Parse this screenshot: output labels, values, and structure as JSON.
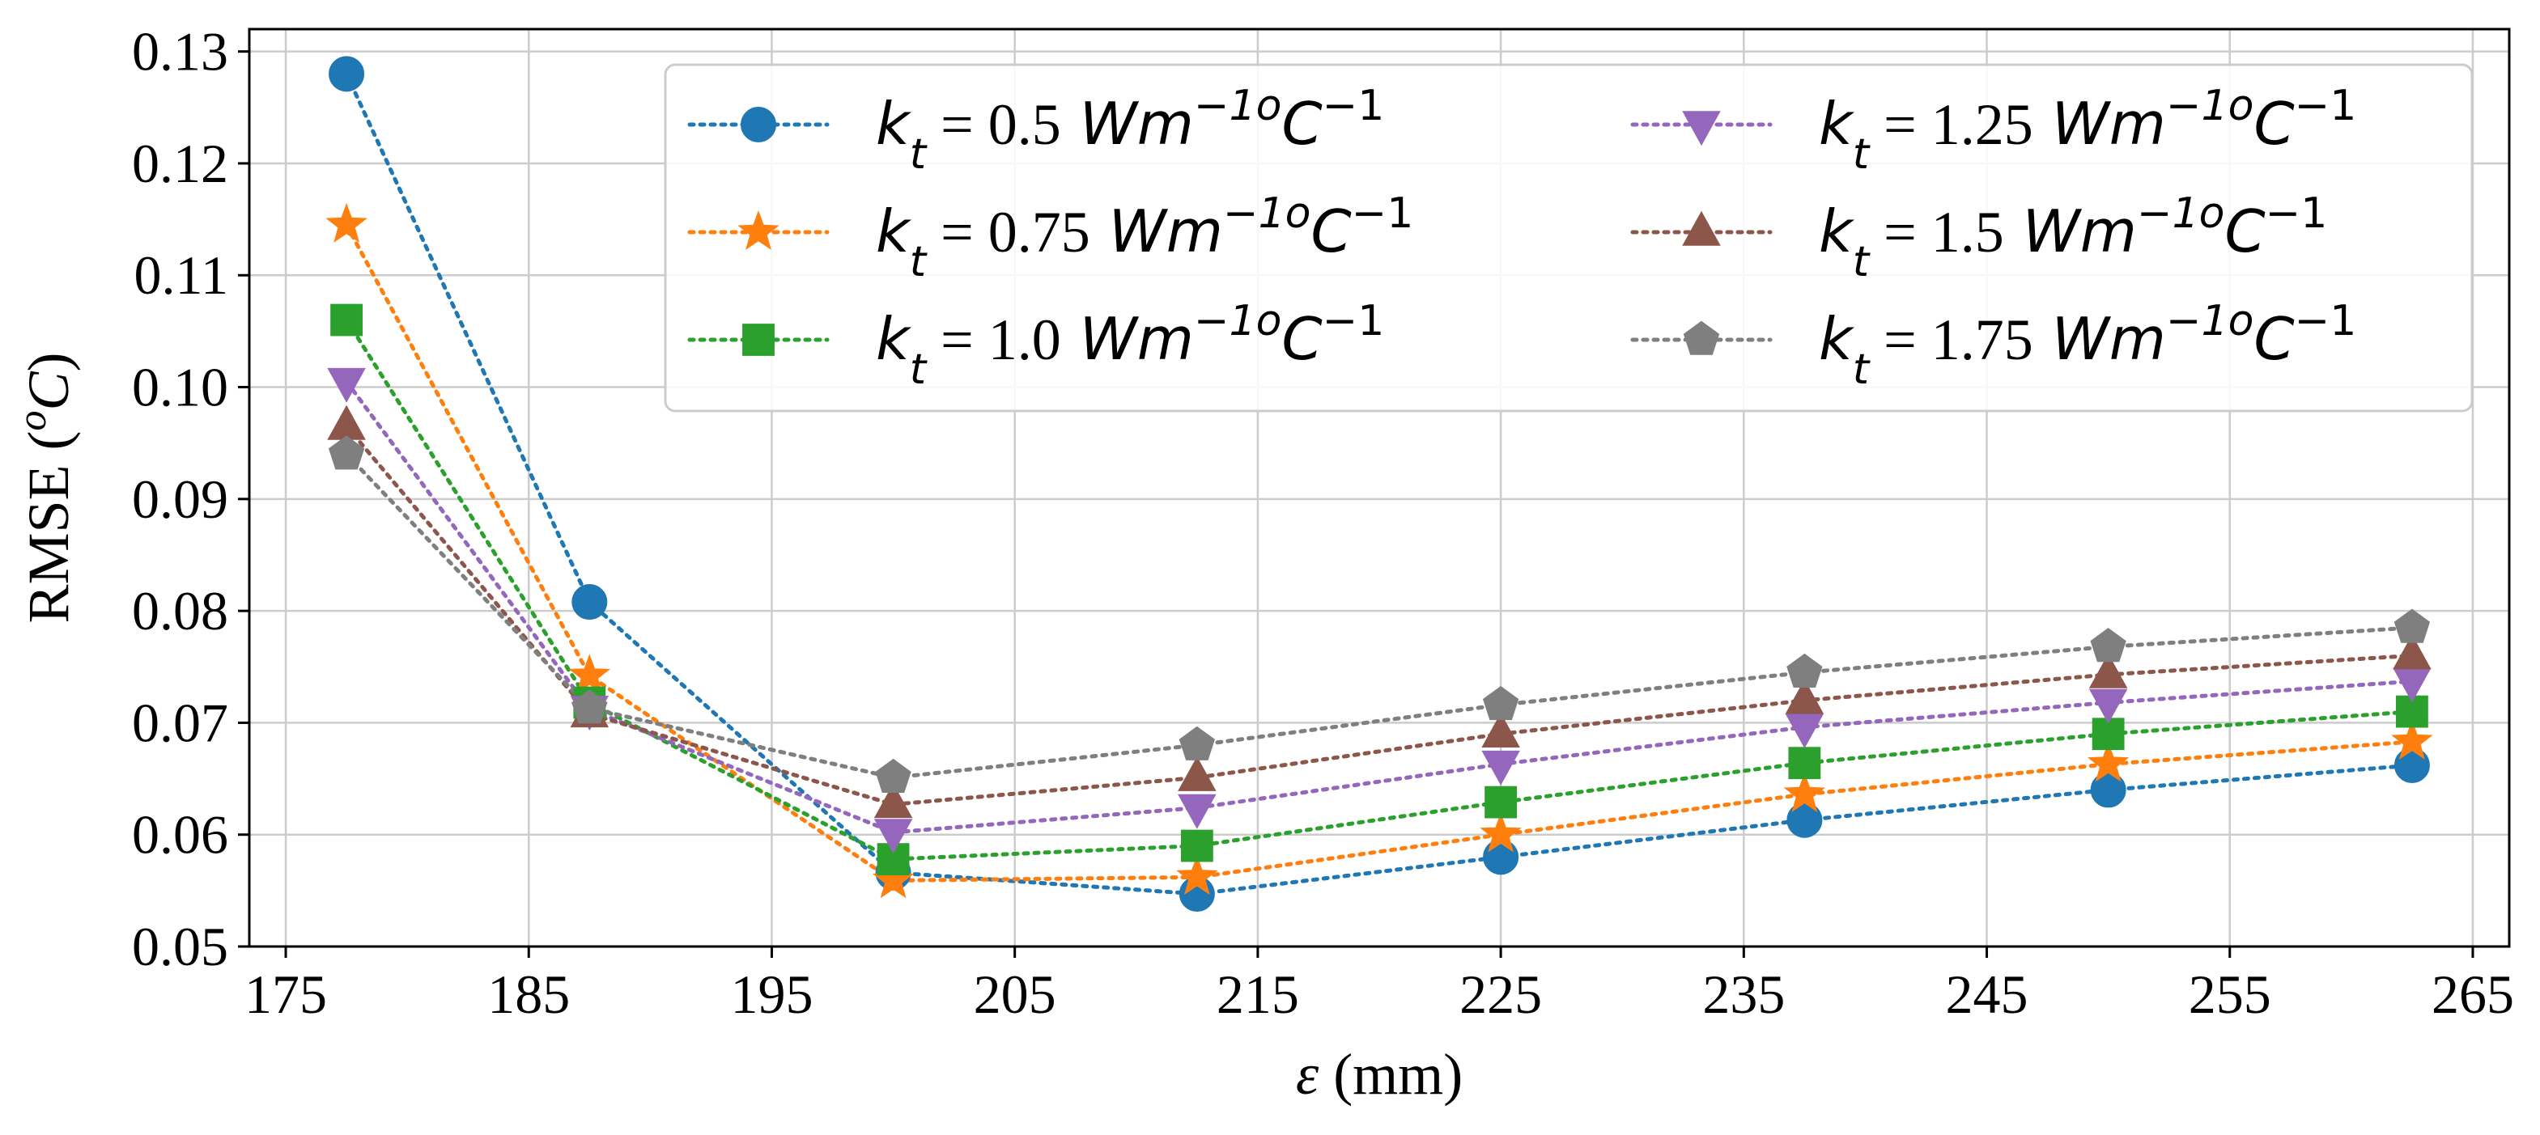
{
  "chart_data": {
    "type": "line",
    "xlabel": {
      "symbol": "ε",
      "unit": " (mm)"
    },
    "ylabel": {
      "prefix": "RMSE (",
      "sup": "o",
      "symbol": "C",
      "suffix": ")"
    },
    "xlim": [
      173.5,
      266.5
    ],
    "ylim": [
      0.05,
      0.132
    ],
    "xticks": [
      175,
      185,
      195,
      205,
      215,
      225,
      235,
      245,
      255,
      265
    ],
    "yticks": [
      0.05,
      0.06,
      0.07,
      0.08,
      0.09,
      0.1,
      0.11,
      0.12,
      0.13
    ],
    "ytick_labels": [
      "0.05",
      "0.06",
      "0.07",
      "0.08",
      "0.09",
      "0.10",
      "0.11",
      "0.12",
      "0.13"
    ],
    "grid": true,
    "legend_position": "top-right",
    "legend_columns": 2,
    "x": [
      177.5,
      187.5,
      200,
      212.5,
      225,
      237.5,
      250,
      262.5
    ],
    "series": [
      {
        "label_k": "k",
        "label_sub": "t",
        "label_eq": " = ",
        "label_val": "0.5",
        "label_unit": " Wm",
        "label_exp": "−1o",
        "label_c": "C",
        "label_cexp": "−1",
        "color": "#1f77b4",
        "marker": "circle",
        "values": [
          0.128,
          0.0808,
          0.0566,
          0.0547,
          0.058,
          0.0613,
          0.064,
          0.0662
        ]
      },
      {
        "label_k": "k",
        "label_sub": "t",
        "label_eq": " = ",
        "label_val": "0.75",
        "label_unit": " Wm",
        "label_exp": "−1o",
        "label_c": "C",
        "label_cexp": "−1",
        "color": "#ff7f0e",
        "marker": "star",
        "values": [
          0.1145,
          0.0742,
          0.0559,
          0.0562,
          0.06,
          0.0636,
          0.0663,
          0.0683
        ]
      },
      {
        "label_k": "k",
        "label_sub": "t",
        "label_eq": " = ",
        "label_val": "1.0",
        "label_unit": " Wm",
        "label_exp": "−1o",
        "label_c": "C",
        "label_cexp": "−1",
        "color": "#2ca02c",
        "marker": "square",
        "values": [
          0.106,
          0.0718,
          0.0578,
          0.059,
          0.0629,
          0.0664,
          0.069,
          0.071
        ]
      },
      {
        "label_k": "k",
        "label_sub": "t",
        "label_eq": " = ",
        "label_val": "1.25",
        "label_unit": " Wm",
        "label_exp": "−1o",
        "label_c": "C",
        "label_cexp": "−1",
        "color": "#9467bd",
        "marker": "triangle-down",
        "values": [
          0.1005,
          0.0712,
          0.0602,
          0.0624,
          0.0663,
          0.0696,
          0.0718,
          0.0737
        ]
      },
      {
        "label_k": "k",
        "label_sub": "t",
        "label_eq": " = ",
        "label_val": "1.5",
        "label_unit": " Wm",
        "label_exp": "−1o",
        "label_c": "C",
        "label_cexp": "−1",
        "color": "#8c564b",
        "marker": "triangle-up",
        "values": [
          0.0965,
          0.0708,
          0.0627,
          0.0651,
          0.069,
          0.072,
          0.0743,
          0.076
        ]
      },
      {
        "label_k": "k",
        "label_sub": "t",
        "label_eq": " = ",
        "label_val": "1.75",
        "label_unit": " Wm",
        "label_exp": "−1o",
        "label_c": "C",
        "label_cexp": "−1",
        "color": "#7f7f7f",
        "marker": "pentagon",
        "values": [
          0.094,
          0.0713,
          0.0651,
          0.068,
          0.0716,
          0.0745,
          0.0768,
          0.0785
        ]
      }
    ]
  }
}
